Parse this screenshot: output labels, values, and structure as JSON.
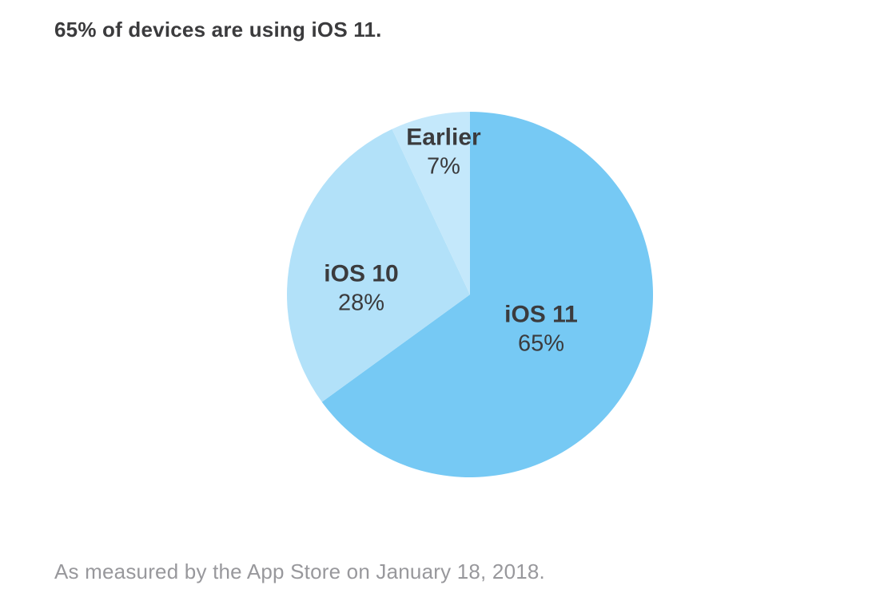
{
  "title": "65% of devices are using iOS 11.",
  "source_note": "As measured by the App Store on January 18, 2018.",
  "chart_data": {
    "type": "pie",
    "title": "65% of devices are using iOS 11.",
    "start_angle_deg": 0,
    "direction": "clockwise",
    "legend_position": "none",
    "labels_on_slices": true,
    "slices": [
      {
        "label": "iOS 11",
        "value": 65,
        "display": "65%",
        "color": "#76c9f4"
      },
      {
        "label": "iOS 10",
        "value": 28,
        "display": "28%",
        "color": "#b2e1f9"
      },
      {
        "label": "Earlier",
        "value": 7,
        "display": "7%",
        "color": "#c4e8fb"
      }
    ],
    "source_note": "As measured by the App Store on January 18, 2018."
  },
  "colors": {
    "background": "#ffffff",
    "label_text": "#3b3b3d",
    "title_text": "#3b3b3d",
    "source_text": "#98989c"
  }
}
